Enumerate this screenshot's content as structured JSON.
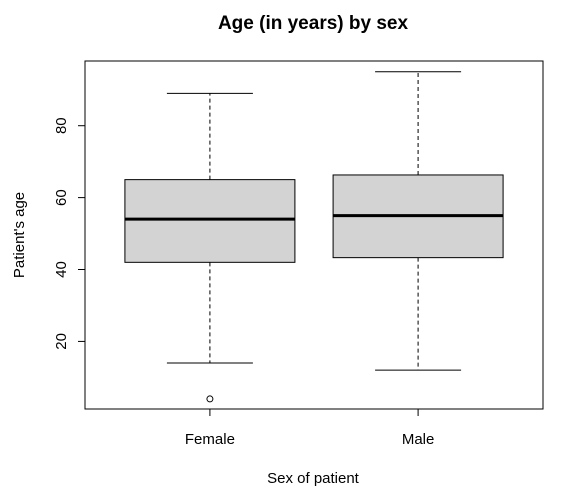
{
  "chart_data": {
    "type": "boxplot",
    "title": "Age (in years) by sex",
    "xlabel": "Sex of patient",
    "ylabel": "Patient's age",
    "categories": [
      "Female",
      "Male"
    ],
    "y_ticks": [
      "20",
      "40",
      "60",
      "80"
    ],
    "ylim": [
      1.2,
      98
    ],
    "grid": false,
    "box_fill": "#d3d3d3",
    "series": [
      {
        "category": "Female",
        "min": 14,
        "q1": 42,
        "median": 54,
        "q3": 65,
        "max": 89,
        "outliers": [
          4
        ]
      },
      {
        "category": "Male",
        "min": 12,
        "q1": 43.3,
        "median": 55,
        "q3": 66.3,
        "max": 95,
        "outliers": []
      }
    ]
  }
}
